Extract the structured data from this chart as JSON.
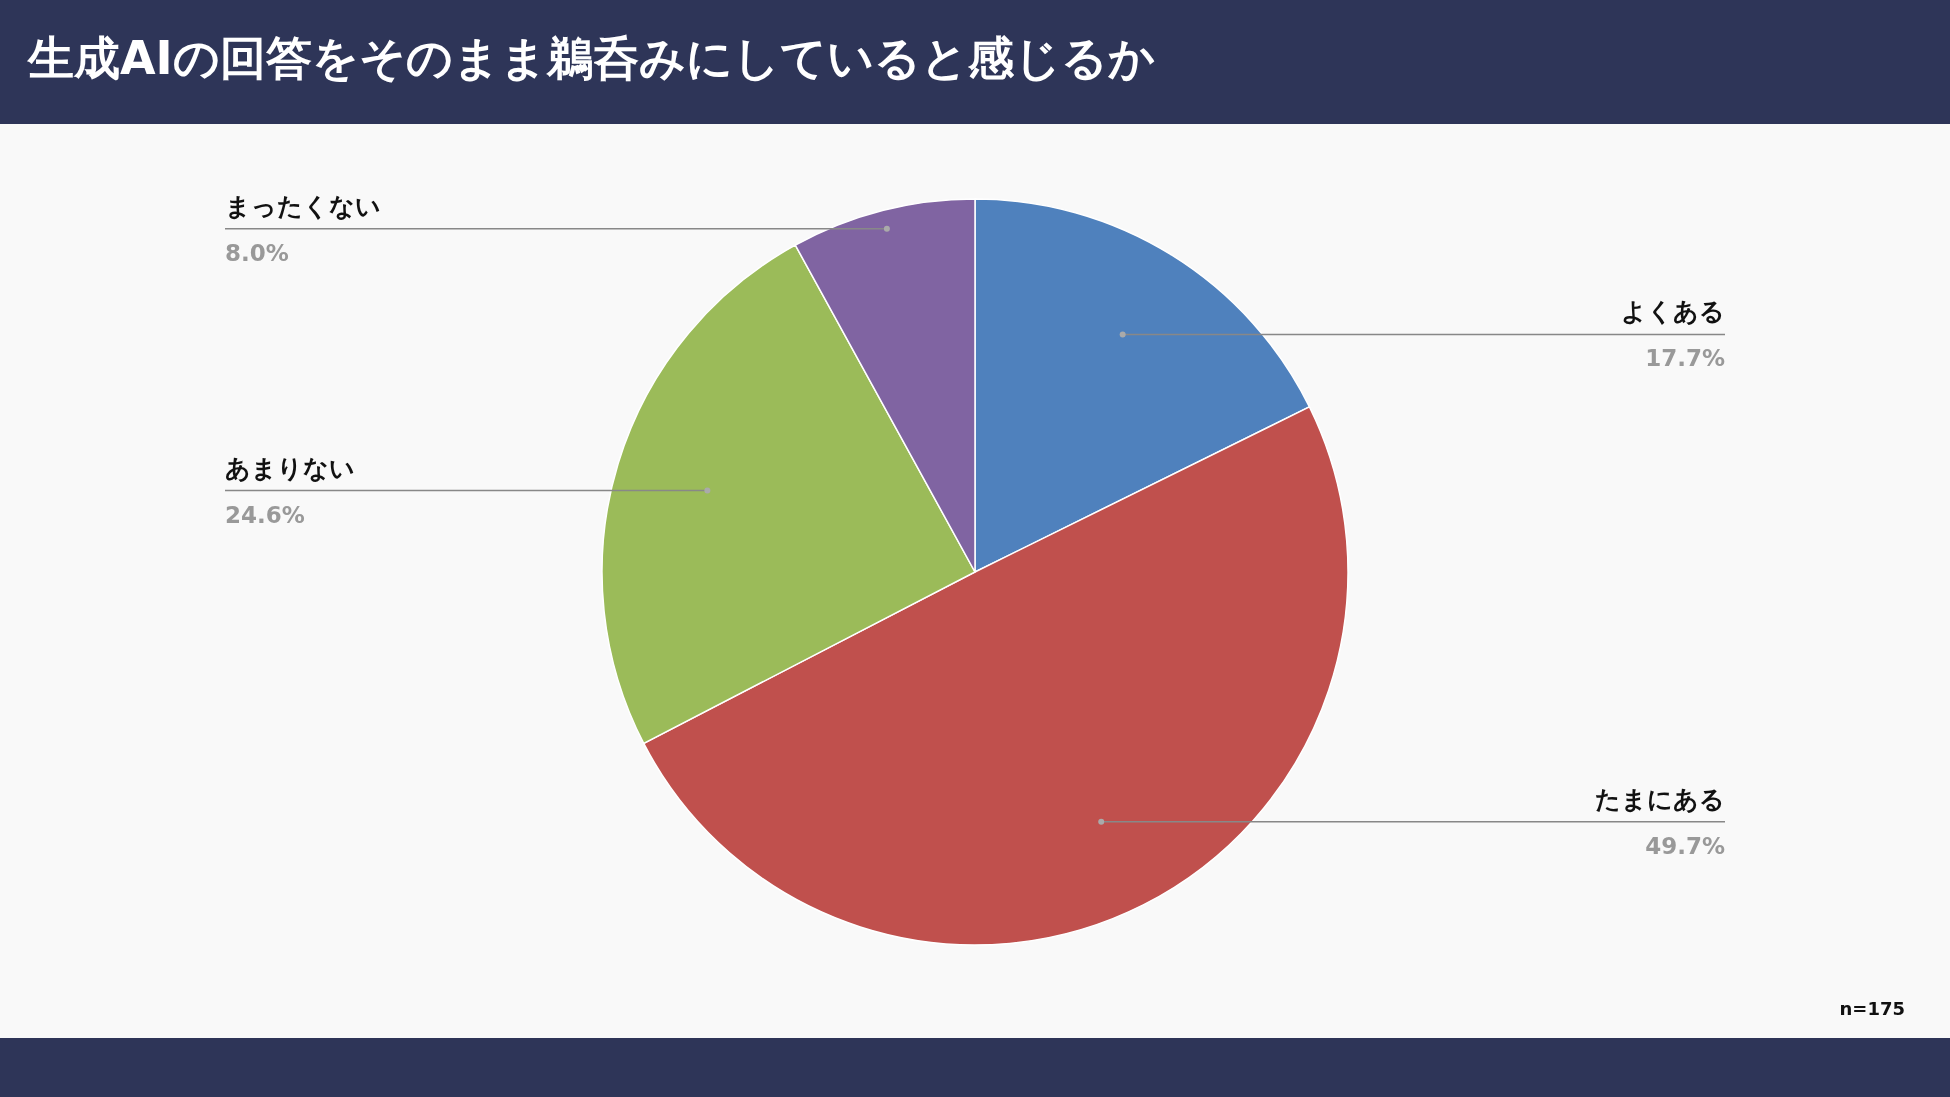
{
  "chart_data": {
    "type": "pie",
    "title": "生成AIの回答をそのまま鵜呑みにしていると感じるか",
    "categories": [
      "よくある",
      "たまにある",
      "あまりない",
      "まったくない"
    ],
    "values": [
      17.7,
      49.7,
      24.6,
      8.0
    ],
    "colors": [
      "#4f81bd",
      "#c0504d",
      "#9bbb59",
      "#8064a2"
    ],
    "value_labels": [
      "17.7%",
      "49.7%",
      "24.6%",
      "8.0%"
    ],
    "annotations": [
      "n=175"
    ]
  }
}
